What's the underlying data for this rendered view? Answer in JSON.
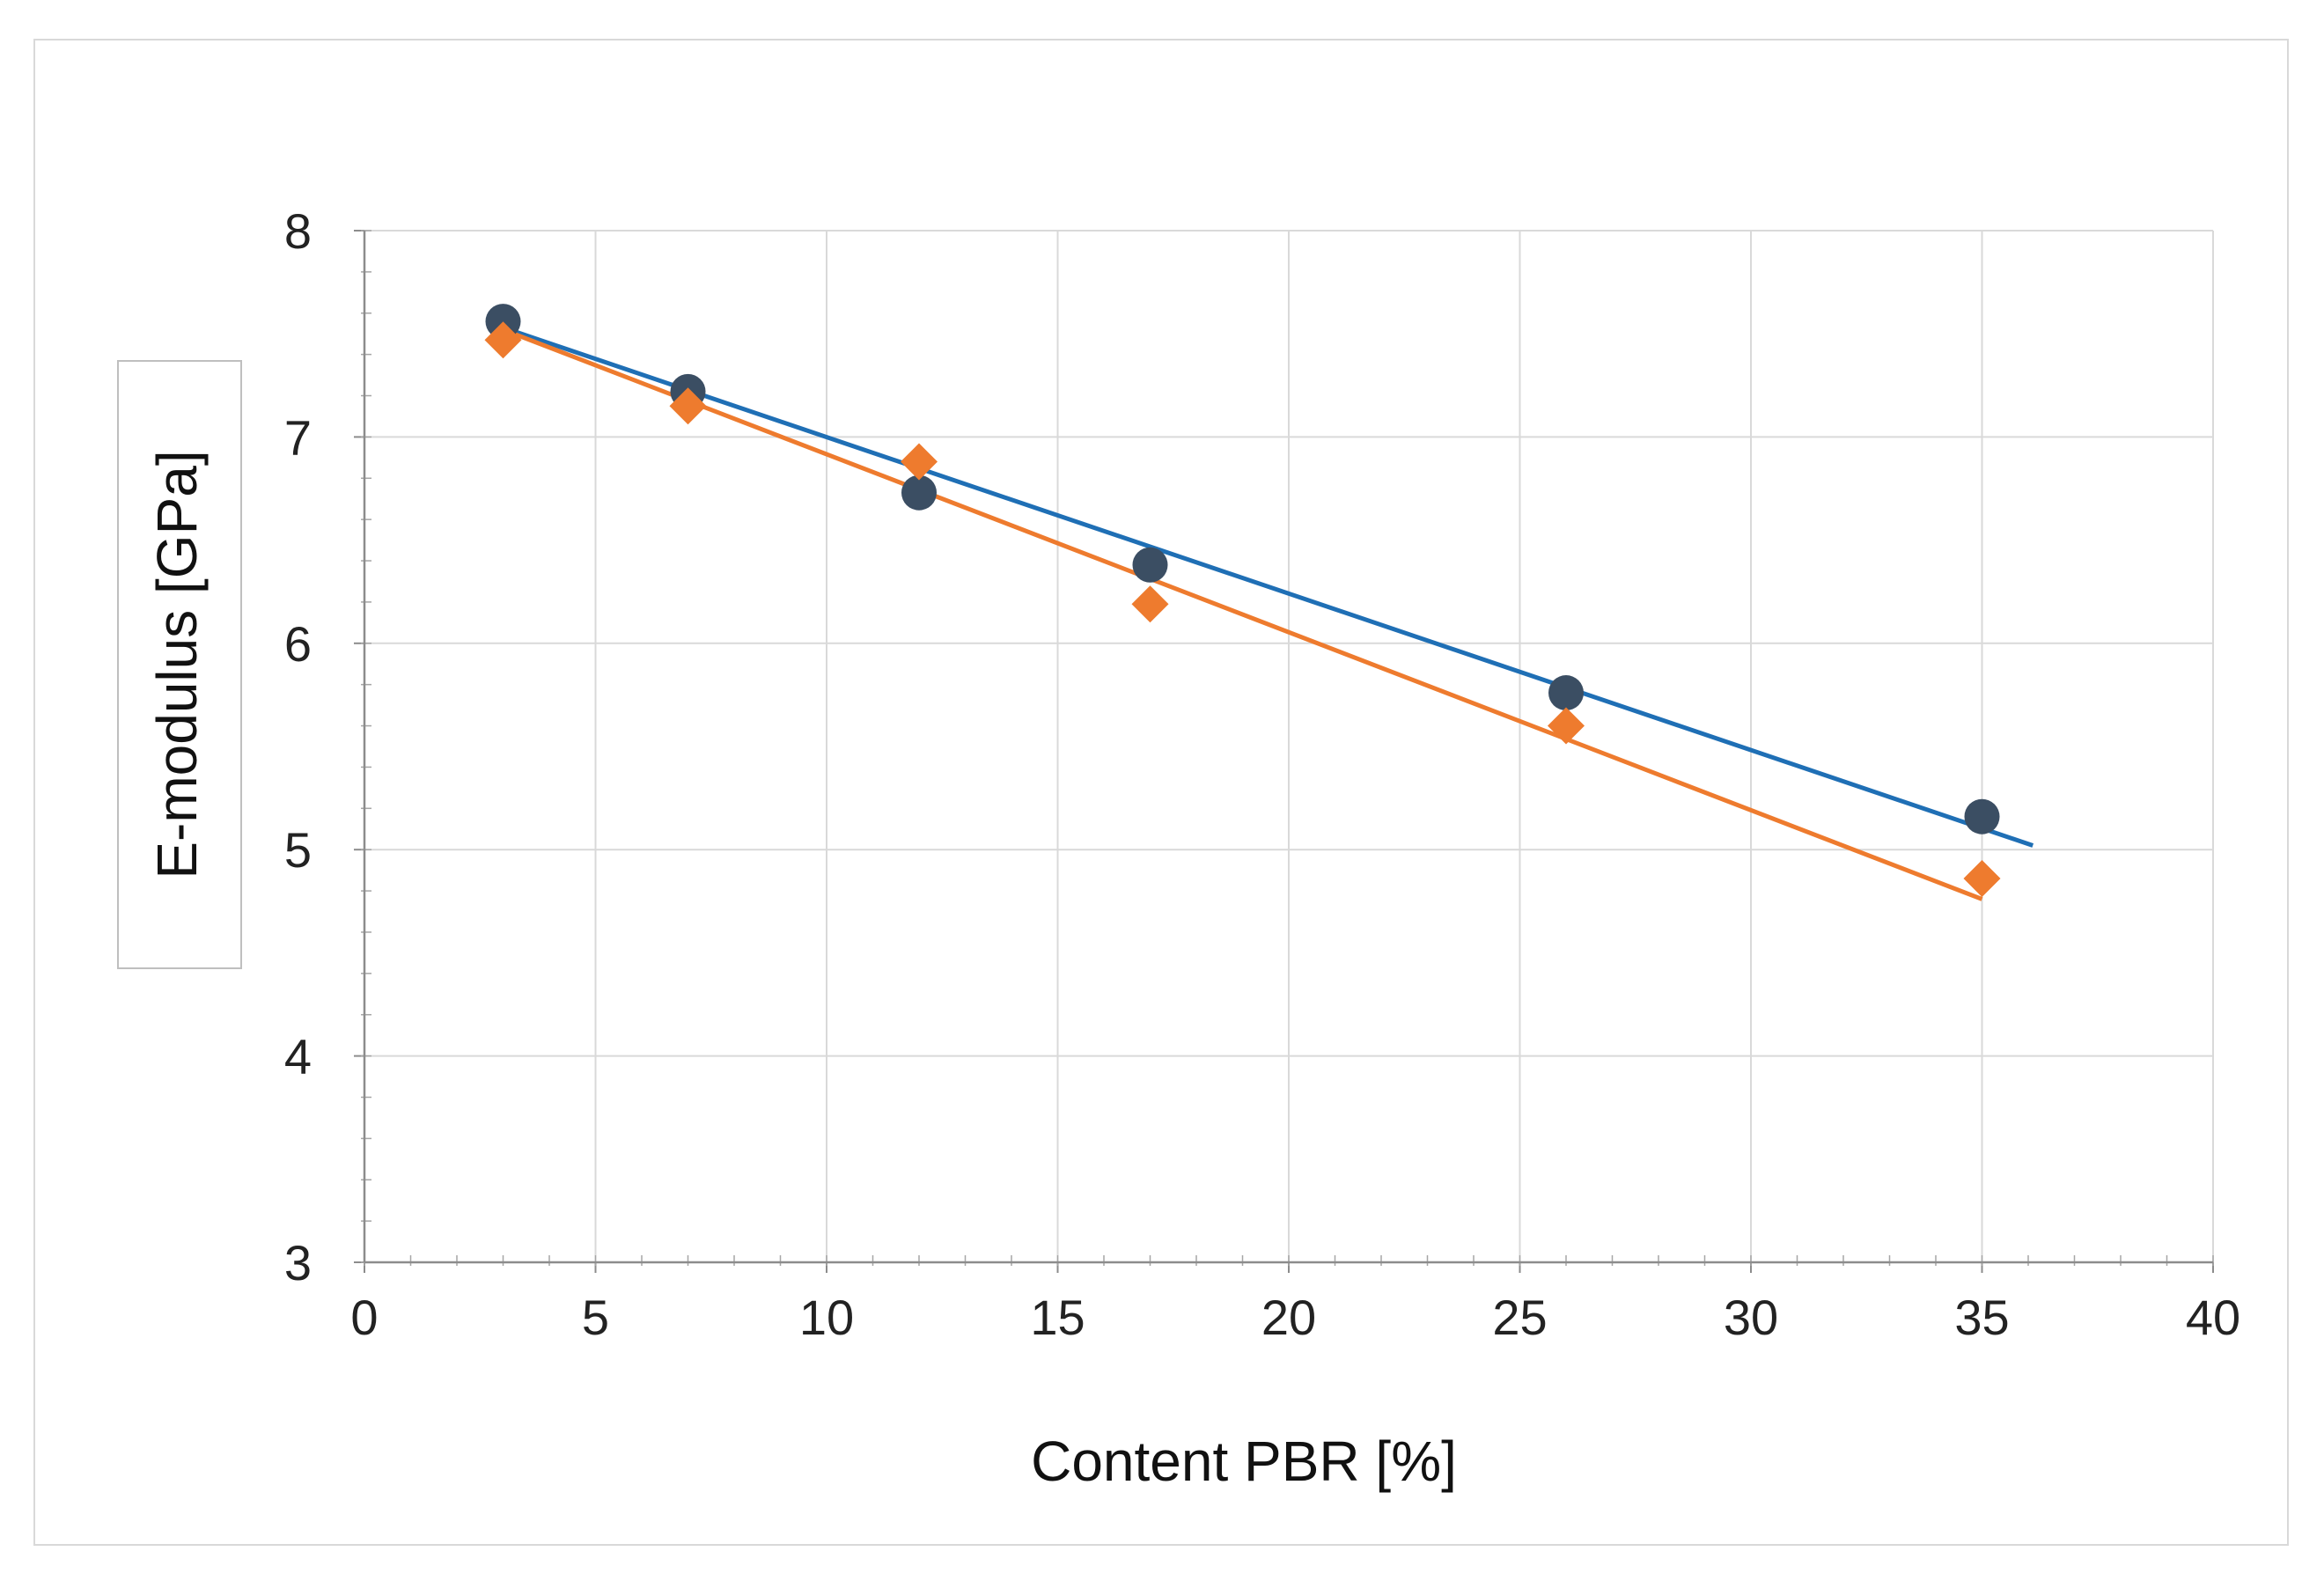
{
  "chart_data": {
    "type": "scatter",
    "title": "",
    "xlabel": "Content PBR [%]",
    "ylabel": "E-modulus [GPa]",
    "xlim": [
      0,
      40
    ],
    "ylim": [
      3,
      8
    ],
    "x_ticks": [
      0,
      5,
      10,
      15,
      20,
      25,
      30,
      35,
      40
    ],
    "y_ticks": [
      3,
      4,
      5,
      6,
      7,
      8
    ],
    "grid": true,
    "legend": "none",
    "series": [
      {
        "marker": "circle",
        "color": "#3b4e63",
        "points": [
          [
            3,
            7.56
          ],
          [
            7,
            7.22
          ],
          [
            12,
            6.73
          ],
          [
            17,
            6.38
          ],
          [
            26,
            5.76
          ],
          [
            35,
            5.16
          ]
        ],
        "trendline": {
          "color": "#1f6fb5",
          "x": [
            3,
            36.1
          ],
          "y": [
            7.53,
            5.02
          ]
        }
      },
      {
        "marker": "diamond",
        "color": "#ee7b2e",
        "points": [
          [
            3,
            7.47
          ],
          [
            7,
            7.15
          ],
          [
            12,
            6.88
          ],
          [
            17,
            6.19
          ],
          [
            26,
            5.6
          ],
          [
            35,
            4.86
          ]
        ],
        "trendline": {
          "color": "#ee7b2e",
          "x": [
            3,
            35
          ],
          "y": [
            7.52,
            4.76
          ]
        }
      }
    ]
  }
}
